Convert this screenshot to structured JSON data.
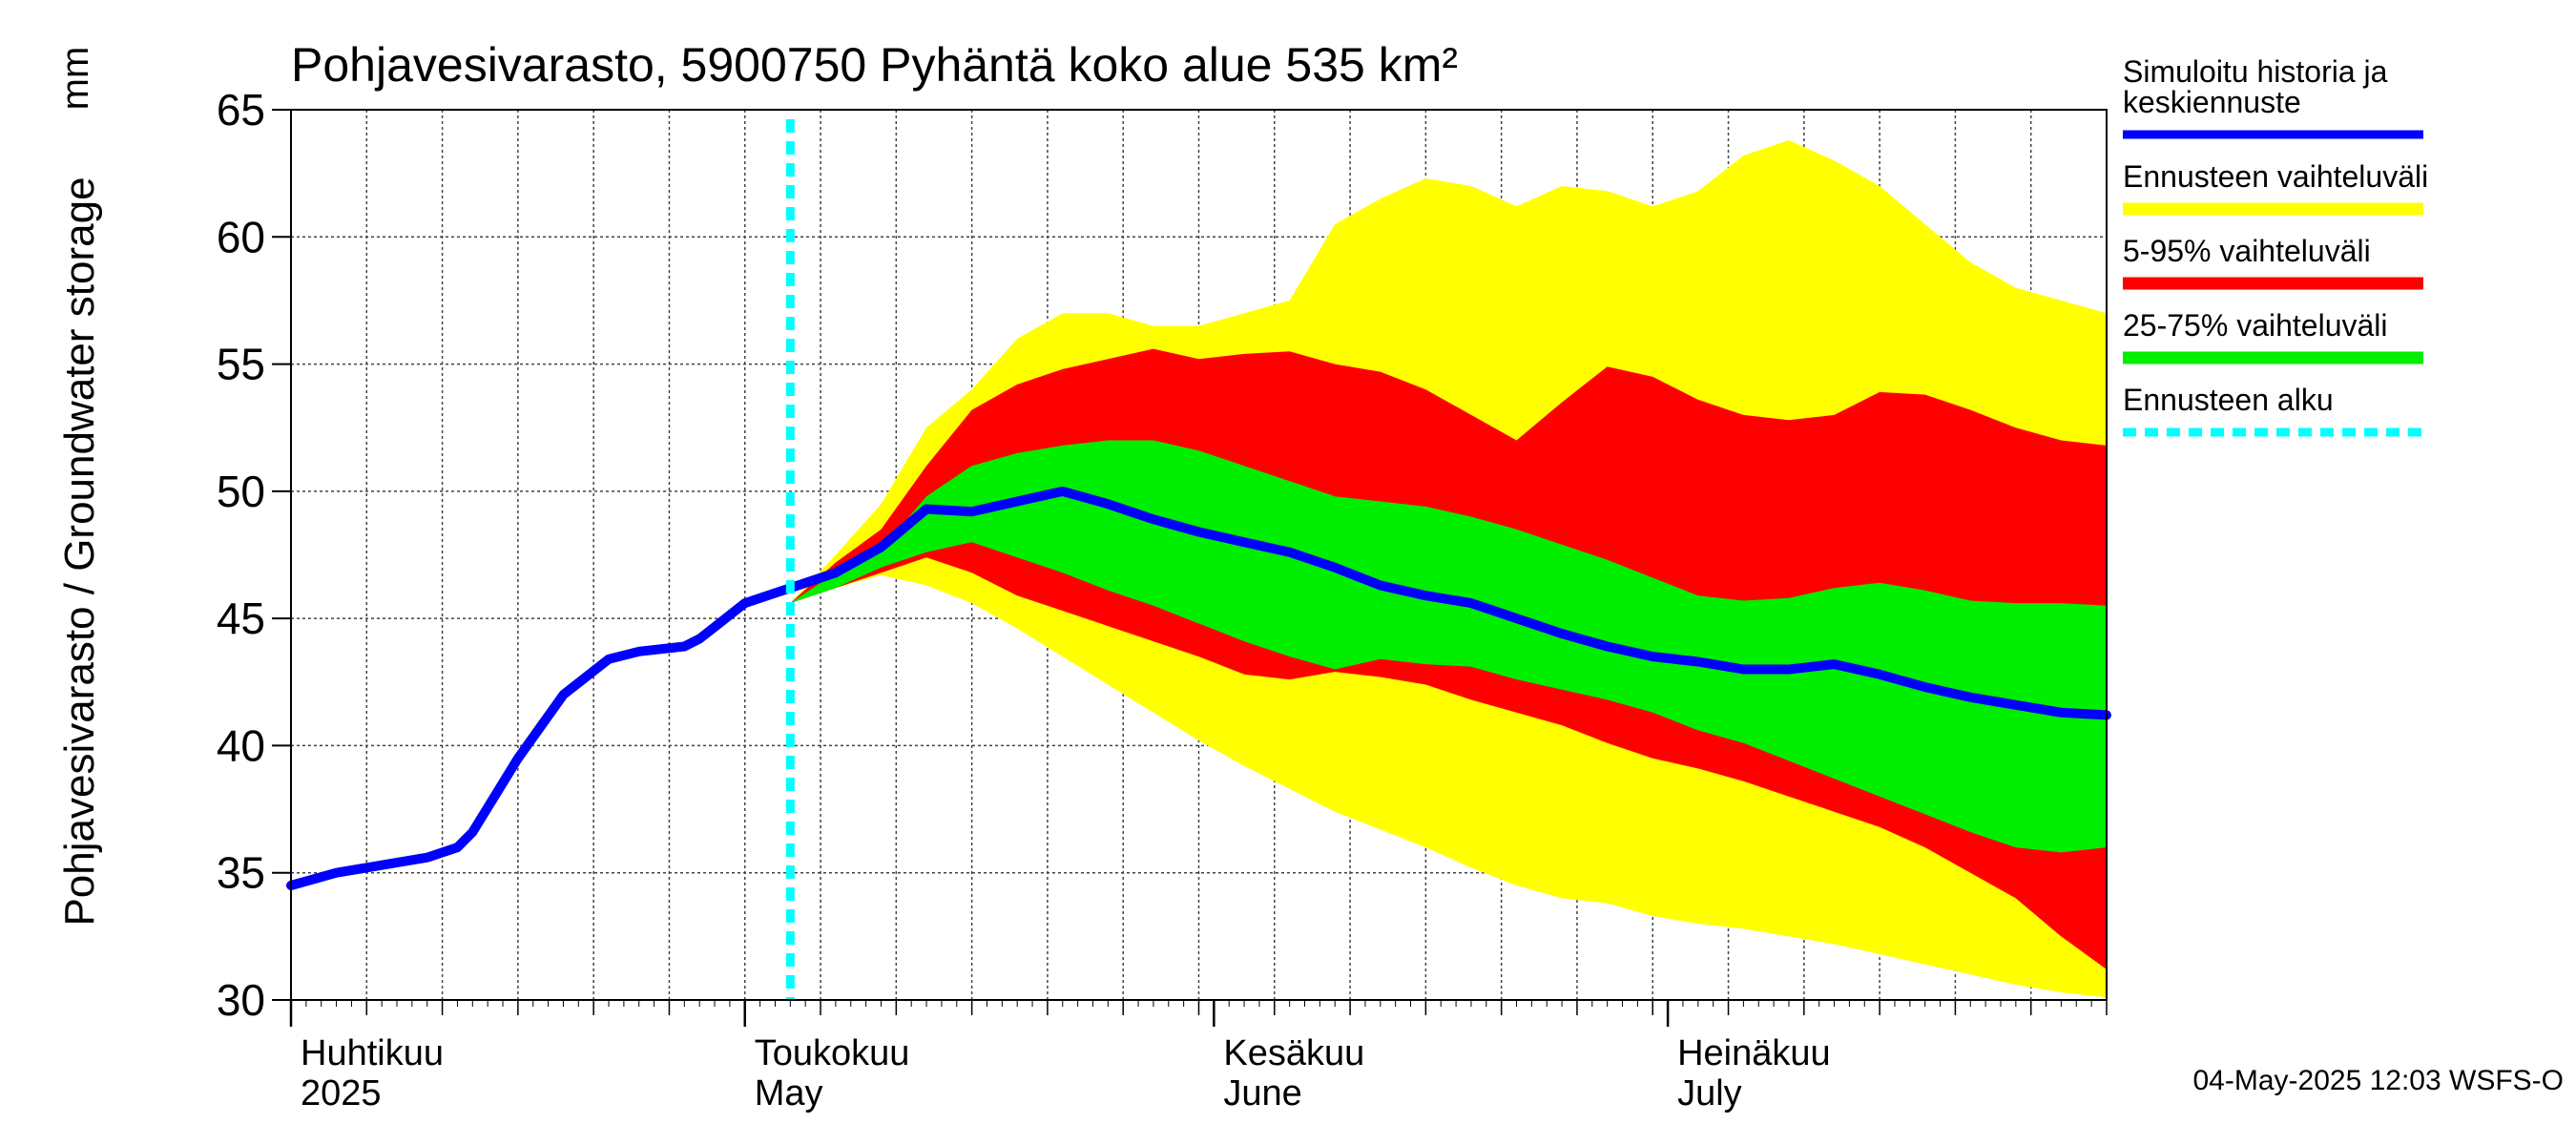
{
  "chart_data": {
    "type": "area",
    "title": "Pohjavesivarasto, 5900750 Pyhäntä koko alue 535 km²",
    "ylabel": "Pohjavesivarasto / Groundwater storage",
    "yunit": "mm",
    "ylim": [
      30,
      65
    ],
    "yticks": [
      30,
      35,
      40,
      45,
      50,
      55,
      60,
      65
    ],
    "xlim_days": [
      0,
      120
    ],
    "x_unit": "days since 2025-04-01",
    "grid": true,
    "forecast_start_day": 33,
    "month_labels": [
      {
        "day": 0,
        "line1": "Huhtikuu",
        "line2": "2025"
      },
      {
        "day": 30,
        "line1": "Toukokuu",
        "line2": "May"
      },
      {
        "day": 61,
        "line1": "Kesäkuu",
        "line2": "June"
      },
      {
        "day": 91,
        "line1": "Heinäkuu",
        "line2": "July"
      }
    ],
    "x": [
      0,
      3,
      6,
      9,
      11,
      12,
      15,
      18,
      21,
      23,
      26,
      27,
      30,
      32,
      33,
      36,
      39,
      42,
      45,
      48,
      51,
      54,
      57,
      60,
      63,
      66,
      69,
      72,
      75,
      78,
      81,
      84,
      87,
      90,
      93,
      96,
      99,
      102,
      105,
      108,
      111,
      114,
      117,
      120
    ],
    "bands": {
      "full_range": {
        "upper": [
          null,
          null,
          null,
          null,
          null,
          null,
          null,
          null,
          null,
          null,
          null,
          null,
          null,
          null,
          45.6,
          47.5,
          49.5,
          52.5,
          54,
          56,
          57,
          57,
          56.5,
          56.5,
          57,
          57.5,
          60.5,
          61.5,
          62.3,
          62,
          61.2,
          62,
          61.8,
          61.2,
          61.8,
          63.2,
          63.8,
          63,
          62,
          60.5,
          59,
          58,
          57.5,
          57
        ],
        "lower": [
          null,
          null,
          null,
          null,
          null,
          null,
          null,
          null,
          null,
          null,
          null,
          null,
          null,
          null,
          45.6,
          46.2,
          46.7,
          46.3,
          45.6,
          44.6,
          43.5,
          42.4,
          41.3,
          40.2,
          39.2,
          38.3,
          37.4,
          36.7,
          36,
          35.2,
          34.5,
          34,
          33.8,
          33.3,
          33,
          32.8,
          32.5,
          32.2,
          31.8,
          31.4,
          31,
          30.6,
          30.3,
          30.1
        ]
      },
      "p5_95": {
        "upper": [
          null,
          null,
          null,
          null,
          null,
          null,
          null,
          null,
          null,
          null,
          null,
          null,
          null,
          null,
          45.6,
          47.2,
          48.5,
          51,
          53.2,
          54.2,
          54.8,
          55.2,
          55.6,
          55.2,
          55.4,
          55.5,
          55,
          54.7,
          54,
          53,
          52,
          53.5,
          54.9,
          54.5,
          53.6,
          53,
          52.8,
          53,
          53.9,
          53.8,
          53.2,
          52.5,
          52,
          51.8
        ],
        "lower": [
          null,
          null,
          null,
          null,
          null,
          null,
          null,
          null,
          null,
          null,
          null,
          null,
          null,
          null,
          45.6,
          46.2,
          46.8,
          47.4,
          46.8,
          45.9,
          45.3,
          44.7,
          44.1,
          43.5,
          42.8,
          42.6,
          42.9,
          42.7,
          42.4,
          41.8,
          41.3,
          40.8,
          40.1,
          39.5,
          39.1,
          38.6,
          38,
          37.4,
          36.8,
          36,
          35,
          34,
          32.5,
          31.2
        ]
      },
      "p25_75": {
        "upper": [
          null,
          null,
          null,
          null,
          null,
          null,
          null,
          null,
          null,
          null,
          null,
          null,
          null,
          null,
          45.6,
          46.8,
          47.7,
          49.8,
          51,
          51.5,
          51.8,
          52,
          52,
          51.6,
          51,
          50.4,
          49.8,
          49.6,
          49.4,
          49,
          48.5,
          47.9,
          47.3,
          46.6,
          45.9,
          45.7,
          45.8,
          46.2,
          46.4,
          46.1,
          45.7,
          45.6,
          45.6,
          45.5
        ],
        "lower": [
          null,
          null,
          null,
          null,
          null,
          null,
          null,
          null,
          null,
          null,
          null,
          null,
          null,
          null,
          45.6,
          46.2,
          47,
          47.6,
          48,
          47.4,
          46.8,
          46.1,
          45.5,
          44.8,
          44.1,
          43.5,
          43,
          43.4,
          43.2,
          43.1,
          42.6,
          42.2,
          41.8,
          41.3,
          40.6,
          40.1,
          39.4,
          38.7,
          38,
          37.3,
          36.6,
          36,
          35.8,
          36
        ]
      }
    },
    "median": [
      34.5,
      35,
      35.3,
      35.6,
      36,
      36.6,
      39.5,
      42,
      43.4,
      43.7,
      43.9,
      44.2,
      45.6,
      46,
      46.2,
      46.8,
      47.8,
      49.3,
      49.2,
      49.6,
      50,
      49.5,
      48.9,
      48.4,
      48,
      47.6,
      47,
      46.3,
      45.9,
      45.6,
      45,
      44.4,
      43.9,
      43.5,
      43.3,
      43,
      43,
      43.2,
      42.8,
      42.3,
      41.9,
      41.6,
      41.3,
      41.2
    ],
    "legend": [
      {
        "label": "Simuloitu historia ja keskiennuste",
        "line1": "Simuloitu historia ja",
        "line2": "keskiennuste",
        "color": "#0000ff",
        "style": "solid"
      },
      {
        "label": "Ennusteen vaihteluväli",
        "color": "#ffff00",
        "style": "solid"
      },
      {
        "label": "5-95% vaihteluväli",
        "color": "#ff0000",
        "style": "solid"
      },
      {
        "label": "25-75% vaihteluväli",
        "color": "#00ee00",
        "style": "solid"
      },
      {
        "label": "Ennusteen alku",
        "color": "#00ffff",
        "style": "dashed"
      }
    ],
    "timestamp": "04-May-2025 12:03 WSFS-O"
  }
}
